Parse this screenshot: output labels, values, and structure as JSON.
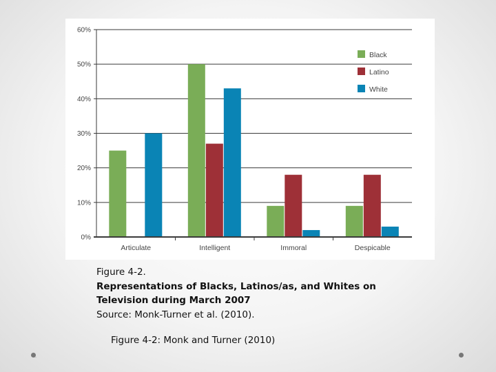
{
  "chart_data": {
    "type": "bar",
    "categories": [
      "Articulate",
      "Intelligent",
      "Immoral",
      "Despicable"
    ],
    "series": [
      {
        "name": "Black",
        "color": "#7aad57",
        "values": [
          25,
          50,
          9,
          9
        ]
      },
      {
        "name": "Latino",
        "color": "#9e3037",
        "values": [
          0,
          27,
          18,
          18
        ]
      },
      {
        "name": "White",
        "color": "#0a84b5",
        "values": [
          30,
          43,
          2,
          3
        ]
      }
    ],
    "ylim": [
      0,
      60
    ],
    "yticks": [
      "0%",
      "10%",
      "20%",
      "30%",
      "40%",
      "50%",
      "60%"
    ],
    "ytick_values": [
      0,
      10,
      20,
      30,
      40,
      50,
      60
    ],
    "grid": true,
    "legend_position": "top-right"
  },
  "caption": {
    "line1": "Figure 4-2.",
    "line2": "Representations of Blacks, Latinos/as, and Whites on",
    "line3": "Television during March 2007",
    "line4": "Source: Monk-Turner et al. (2010)."
  },
  "footnote": "Figure 4-2: Monk and Turner (2010)"
}
